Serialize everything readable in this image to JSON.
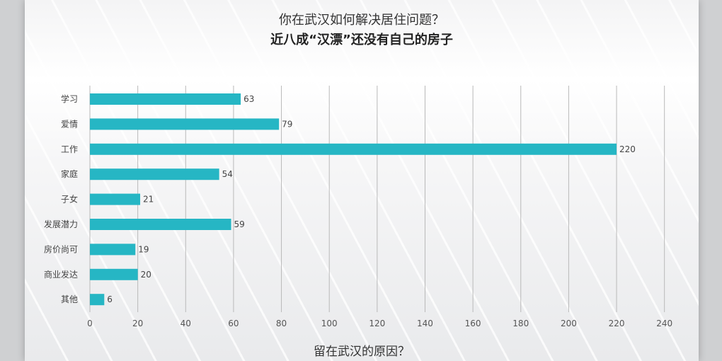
{
  "title": "你在武汉如何解决居住问题？",
  "subtitle": "近八成“汉漂”还没有自己的房子",
  "footer": "留在武汉的原因？",
  "chart_data": {
    "type": "bar",
    "orientation": "horizontal",
    "categories": [
      "学习",
      "爱情",
      "工作",
      "家庭",
      "子女",
      "发展潜力",
      "房价尚可",
      "商业发达",
      "其他"
    ],
    "values": [
      63,
      79,
      220,
      54,
      21,
      59,
      19,
      20,
      6
    ],
    "xticks": [
      0,
      20,
      40,
      60,
      80,
      100,
      120,
      140,
      160,
      180,
      200,
      220,
      240
    ],
    "xlim": [
      0,
      240
    ],
    "grid": "vertical",
    "bar_color": "#26b6c4",
    "grid_color": "#b9b9b9"
  }
}
